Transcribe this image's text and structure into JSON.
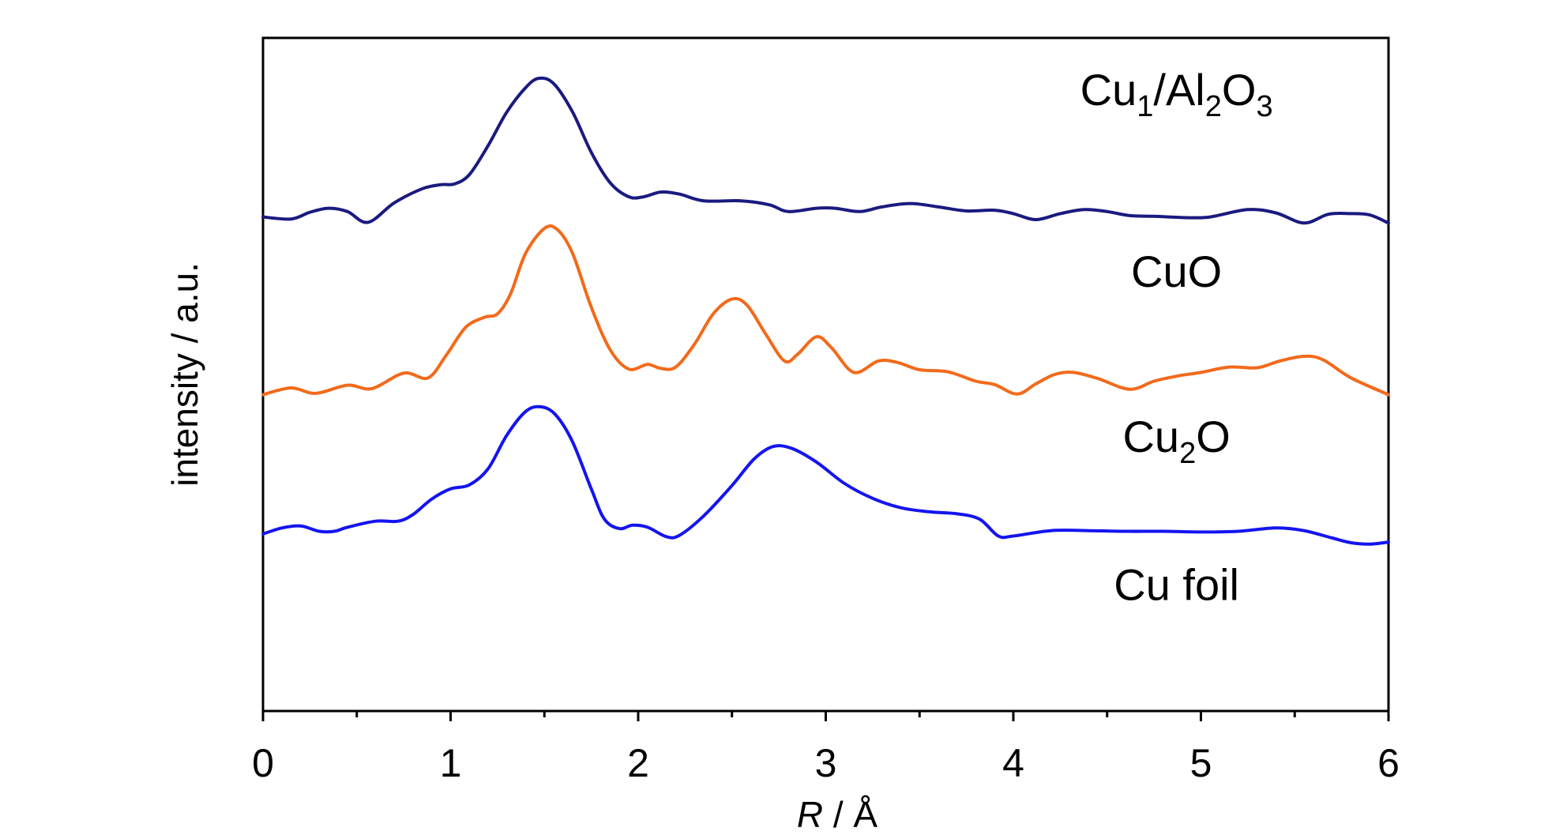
{
  "chart_data": {
    "type": "line",
    "xlabel_italic": "R",
    "xlabel_rest": " / Å",
    "ylabel": "intensity / a.u.",
    "xlim": [
      0,
      6
    ],
    "ylim": [
      0,
      1
    ],
    "grid": false,
    "legend": "none",
    "x_ticks": [
      "0",
      "1",
      "2",
      "3",
      "4",
      "5",
      "6"
    ],
    "labels": [
      {
        "id": "cu1",
        "parts": [
          [
            "Cu",
            0
          ],
          [
            "1",
            1
          ],
          [
            "/Al",
            0
          ],
          [
            "2",
            1
          ],
          [
            "O",
            0
          ],
          [
            "3",
            1
          ]
        ],
        "x": 4.87,
        "y": 0.9
      },
      {
        "id": "cuo",
        "parts": [
          [
            "CuO",
            0
          ]
        ],
        "x": 4.87,
        "y": 0.63
      },
      {
        "id": "cu2o",
        "parts": [
          [
            "Cu",
            0
          ],
          [
            "2",
            1
          ],
          [
            "O",
            0
          ]
        ],
        "x": 4.87,
        "y": 0.385
      },
      {
        "id": "cufoil",
        "parts": [
          [
            "Cu foil",
            0
          ]
        ],
        "x": 4.87,
        "y": 0.165
      }
    ],
    "series": [
      {
        "id": "cu1-al2o3",
        "color": "#1a1a80",
        "points": [
          [
            0.0,
            0.734
          ],
          [
            0.15,
            0.731
          ],
          [
            0.25,
            0.741
          ],
          [
            0.35,
            0.747
          ],
          [
            0.45,
            0.742
          ],
          [
            0.56,
            0.726
          ],
          [
            0.7,
            0.755
          ],
          [
            0.85,
            0.776
          ],
          [
            0.95,
            0.782
          ],
          [
            1.02,
            0.783
          ],
          [
            1.1,
            0.797
          ],
          [
            1.2,
            0.84
          ],
          [
            1.3,
            0.89
          ],
          [
            1.4,
            0.926
          ],
          [
            1.47,
            0.94
          ],
          [
            1.55,
            0.932
          ],
          [
            1.65,
            0.89
          ],
          [
            1.75,
            0.83
          ],
          [
            1.85,
            0.785
          ],
          [
            1.95,
            0.764
          ],
          [
            2.03,
            0.764
          ],
          [
            2.12,
            0.771
          ],
          [
            2.22,
            0.768
          ],
          [
            2.35,
            0.758
          ],
          [
            2.55,
            0.758
          ],
          [
            2.7,
            0.752
          ],
          [
            2.8,
            0.742
          ],
          [
            2.95,
            0.747
          ],
          [
            3.05,
            0.747
          ],
          [
            3.18,
            0.742
          ],
          [
            3.3,
            0.749
          ],
          [
            3.45,
            0.754
          ],
          [
            3.6,
            0.749
          ],
          [
            3.75,
            0.743
          ],
          [
            3.9,
            0.744
          ],
          [
            4.0,
            0.739
          ],
          [
            4.12,
            0.73
          ],
          [
            4.25,
            0.739
          ],
          [
            4.38,
            0.745
          ],
          [
            4.5,
            0.742
          ],
          [
            4.62,
            0.736
          ],
          [
            4.75,
            0.735
          ],
          [
            4.92,
            0.733
          ],
          [
            5.05,
            0.734
          ],
          [
            5.25,
            0.745
          ],
          [
            5.4,
            0.74
          ],
          [
            5.55,
            0.725
          ],
          [
            5.68,
            0.738
          ],
          [
            5.8,
            0.739
          ],
          [
            5.9,
            0.737
          ],
          [
            6.0,
            0.725
          ]
        ]
      },
      {
        "id": "cuo",
        "color": "#f26a1b",
        "points": [
          [
            0.0,
            0.47
          ],
          [
            0.15,
            0.48
          ],
          [
            0.28,
            0.472
          ],
          [
            0.45,
            0.484
          ],
          [
            0.58,
            0.479
          ],
          [
            0.75,
            0.502
          ],
          [
            0.88,
            0.495
          ],
          [
            0.98,
            0.53
          ],
          [
            1.08,
            0.57
          ],
          [
            1.18,
            0.585
          ],
          [
            1.25,
            0.59
          ],
          [
            1.32,
            0.62
          ],
          [
            1.4,
            0.68
          ],
          [
            1.5,
            0.717
          ],
          [
            1.57,
            0.715
          ],
          [
            1.65,
            0.68
          ],
          [
            1.75,
            0.6
          ],
          [
            1.85,
            0.537
          ],
          [
            1.95,
            0.508
          ],
          [
            2.05,
            0.515
          ],
          [
            2.12,
            0.509
          ],
          [
            2.2,
            0.511
          ],
          [
            2.3,
            0.545
          ],
          [
            2.4,
            0.59
          ],
          [
            2.5,
            0.612
          ],
          [
            2.58,
            0.603
          ],
          [
            2.68,
            0.56
          ],
          [
            2.78,
            0.52
          ],
          [
            2.85,
            0.53
          ],
          [
            2.95,
            0.556
          ],
          [
            3.03,
            0.54
          ],
          [
            3.15,
            0.503
          ],
          [
            3.28,
            0.52
          ],
          [
            3.38,
            0.518
          ],
          [
            3.5,
            0.507
          ],
          [
            3.65,
            0.504
          ],
          [
            3.8,
            0.49
          ],
          [
            3.9,
            0.485
          ],
          [
            4.02,
            0.471
          ],
          [
            4.12,
            0.486
          ],
          [
            4.22,
            0.5
          ],
          [
            4.32,
            0.503
          ],
          [
            4.45,
            0.494
          ],
          [
            4.62,
            0.478
          ],
          [
            4.75,
            0.49
          ],
          [
            4.88,
            0.498
          ],
          [
            5.0,
            0.503
          ],
          [
            5.15,
            0.511
          ],
          [
            5.3,
            0.51
          ],
          [
            5.42,
            0.52
          ],
          [
            5.55,
            0.527
          ],
          [
            5.65,
            0.522
          ],
          [
            5.8,
            0.495
          ],
          [
            6.0,
            0.47
          ]
        ]
      },
      {
        "id": "cu2o",
        "color": "#1414f0",
        "points": [
          [
            0.0,
            0.263
          ],
          [
            0.1,
            0.272
          ],
          [
            0.2,
            0.275
          ],
          [
            0.3,
            0.267
          ],
          [
            0.38,
            0.267
          ],
          [
            0.45,
            0.273
          ],
          [
            0.6,
            0.282
          ],
          [
            0.72,
            0.282
          ],
          [
            0.8,
            0.292
          ],
          [
            0.9,
            0.315
          ],
          [
            1.0,
            0.33
          ],
          [
            1.1,
            0.336
          ],
          [
            1.2,
            0.36
          ],
          [
            1.3,
            0.41
          ],
          [
            1.4,
            0.445
          ],
          [
            1.48,
            0.452
          ],
          [
            1.56,
            0.44
          ],
          [
            1.65,
            0.4
          ],
          [
            1.75,
            0.33
          ],
          [
            1.82,
            0.285
          ],
          [
            1.9,
            0.271
          ],
          [
            1.97,
            0.276
          ],
          [
            2.05,
            0.273
          ],
          [
            2.15,
            0.259
          ],
          [
            2.22,
            0.261
          ],
          [
            2.35,
            0.29
          ],
          [
            2.5,
            0.335
          ],
          [
            2.62,
            0.375
          ],
          [
            2.72,
            0.393
          ],
          [
            2.82,
            0.39
          ],
          [
            2.95,
            0.37
          ],
          [
            3.1,
            0.338
          ],
          [
            3.25,
            0.316
          ],
          [
            3.4,
            0.302
          ],
          [
            3.55,
            0.296
          ],
          [
            3.7,
            0.293
          ],
          [
            3.82,
            0.285
          ],
          [
            3.92,
            0.26
          ],
          [
            4.0,
            0.26
          ],
          [
            4.2,
            0.268
          ],
          [
            4.4,
            0.268
          ],
          [
            4.6,
            0.267
          ],
          [
            4.8,
            0.267
          ],
          [
            5.0,
            0.266
          ],
          [
            5.2,
            0.267
          ],
          [
            5.4,
            0.272
          ],
          [
            5.55,
            0.268
          ],
          [
            5.7,
            0.257
          ],
          [
            5.8,
            0.25
          ],
          [
            5.9,
            0.248
          ],
          [
            6.0,
            0.251
          ]
        ]
      }
    ]
  }
}
